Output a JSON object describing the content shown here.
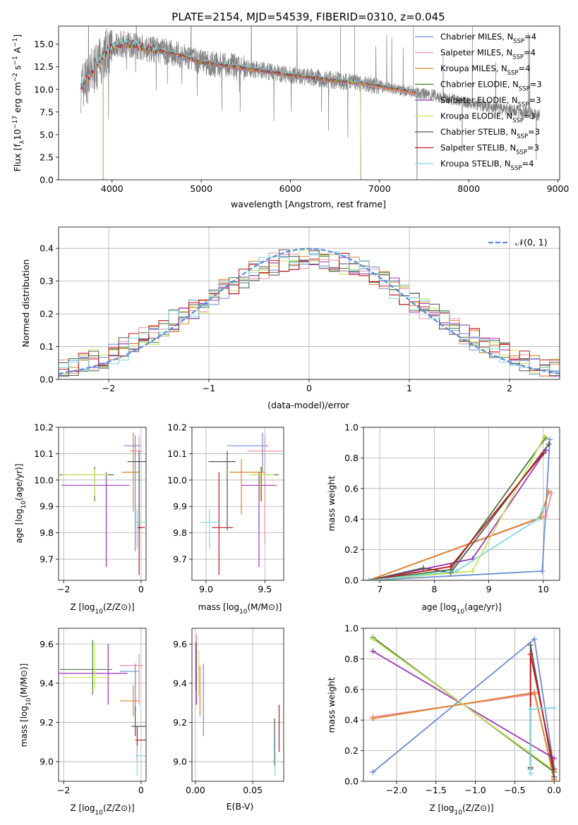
{
  "colors": {
    "chabrier_miles": "#6b8dd6",
    "salpeter_miles": "#f08ca0",
    "kroupa_miles": "#d9822b",
    "chabrier_elodie": "#4a7a3a",
    "salpeter_elodie": "#9b35b5",
    "kroupa_elodie": "#c8e65a",
    "chabrier_stelib": "#555555",
    "salpeter_stelib": "#c0161b",
    "kroupa_stelib": "#7dd8dd",
    "data": "#808080",
    "normal_curve": "#5b8bd8"
  },
  "chart_data": [
    {
      "id": "spectrum",
      "type": "line",
      "title": "PLATE=2154, MJD=54539, FIBERID=0310, z=0.045",
      "xlabel": "wavelength [Angstrom, rest frame]",
      "ylabel_parts": [
        "Flux [f",
        "λ",
        "10",
        "−17",
        " erg cm",
        "−2",
        " s",
        "−1",
        " A",
        "−1",
        "]"
      ],
      "xlim": [
        3400,
        9020
      ],
      "ylim": [
        0,
        17
      ],
      "xticks": [
        4000,
        5000,
        6000,
        7000,
        8000,
        9000
      ],
      "yticks": [
        0.0,
        2.5,
        5.0,
        7.5,
        10.0,
        12.5,
        15.0
      ],
      "legend_position": "right",
      "legend": [
        {
          "key": "chabrier_miles",
          "base": "Chabrier MILES, N",
          "sub": "SSP",
          "value": "=4"
        },
        {
          "key": "salpeter_miles",
          "base": "Salpeter MILES, N",
          "sub": "SSP",
          "value": "=4"
        },
        {
          "key": "kroupa_miles",
          "base": "Kroupa MILES, N",
          "sub": "SSP",
          "value": "=4"
        },
        {
          "key": "chabrier_elodie",
          "base": "Chabrier ELODIE, N",
          "sub": "SSP",
          "value": "=3"
        },
        {
          "key": "salpeter_elodie",
          "base": "Salpeter ELODIE, N",
          "sub": "SSP",
          "value": "=3"
        },
        {
          "key": "kroupa_elodie",
          "base": "Kroupa ELODIE, N",
          "sub": "SSP",
          "value": "=3"
        },
        {
          "key": "chabrier_stelib",
          "base": "Chabrier STELIB, N",
          "sub": "SSP",
          "value": "=3"
        },
        {
          "key": "salpeter_stelib",
          "base": "Salpeter STELIB, N",
          "sub": "SSP",
          "value": "=3"
        },
        {
          "key": "kroupa_stelib",
          "base": "Kroupa STELIB, N",
          "sub": "SSP",
          "value": "=4"
        }
      ],
      "continuum": [
        [
          3650,
          10.2
        ],
        [
          3750,
          11.5
        ],
        [
          3850,
          13.0
        ],
        [
          3950,
          14.2
        ],
        [
          4050,
          15.0
        ],
        [
          4200,
          15.0
        ],
        [
          4400,
          14.5
        ],
        [
          4700,
          14.0
        ],
        [
          5000,
          13.0
        ],
        [
          5300,
          12.6
        ],
        [
          5600,
          12.2
        ],
        [
          6000,
          11.6
        ],
        [
          6400,
          11.1
        ],
        [
          6800,
          10.7
        ],
        [
          7200,
          10.0
        ],
        [
          7600,
          9.3
        ],
        [
          8000,
          8.5
        ],
        [
          8400,
          7.8
        ],
        [
          8800,
          7.2
        ]
      ],
      "model_ranges": {
        "miles_max": 7420,
        "elodie_range": [
          3900,
          6790
        ],
        "stelib_max": 7420
      }
    },
    {
      "id": "residual_histogram",
      "type": "histogram",
      "xlabel": "(data-model)/error",
      "ylabel": "Normed distribution",
      "xlim": [
        -2.5,
        2.5
      ],
      "ylim": [
        0,
        0.465
      ],
      "xticks": [
        -2,
        -1,
        0,
        1,
        2
      ],
      "yticks": [
        0.0,
        0.1,
        0.2,
        0.3,
        0.4
      ],
      "legend": "𝒩(0, 1)",
      "legend_position": "top-right",
      "bin_width": 0.1,
      "normal": {
        "mean": 0,
        "sigma": 1,
        "style": "dashed"
      }
    },
    {
      "id": "age_vs_Z",
      "type": "errorbar",
      "xlabel": "Z [log10(Z/Z⊙)]",
      "ylabel": "age  [log10(age/yr)]",
      "xlim": [
        -2.13,
        0.13
      ],
      "ylim": [
        9.62,
        10.2
      ],
      "xticks": [
        -2,
        0
      ],
      "yticks": [
        9.7,
        9.8,
        9.9,
        10.0,
        10.1,
        10.2
      ],
      "points": [
        {
          "key": "chabrier_miles",
          "x": -0.15,
          "xerr": [
            0.3,
            0.15
          ],
          "y": 10.13,
          "yerr": [
            0.4,
            0.04
          ]
        },
        {
          "key": "salpeter_miles",
          "x": -0.05,
          "xerr": [
            0.25,
            0.1
          ],
          "y": 10.11,
          "yerr": [
            0.3,
            0.06
          ]
        },
        {
          "key": "kroupa_miles",
          "x": -0.2,
          "xerr": [
            0.3,
            0.15
          ],
          "y": 10.03,
          "yerr": [
            0.15,
            0.15
          ]
        },
        {
          "key": "chabrier_elodie",
          "x": -1.2,
          "xerr": [
            0.9,
            0.5
          ],
          "y": 10.02,
          "yerr": [
            0.1,
            0.03
          ]
        },
        {
          "key": "salpeter_elodie",
          "x": -0.9,
          "xerr": [
            1.15,
            0.6
          ],
          "y": 9.98,
          "yerr": [
            0.31,
            0.05
          ]
        },
        {
          "key": "kroupa_elodie",
          "x": -1.2,
          "xerr": [
            0.85,
            0.35
          ],
          "y": 10.02,
          "yerr": [
            0.08,
            0.02
          ]
        },
        {
          "key": "chabrier_stelib",
          "x": -0.05,
          "xerr": [
            0.3,
            0.2
          ],
          "y": 10.07,
          "yerr": [
            0.26,
            0.04
          ]
        },
        {
          "key": "salpeter_stelib",
          "x": -0.05,
          "xerr": [
            0.05,
            0.15
          ],
          "y": 9.82,
          "yerr": [
            0.18,
            0.03
          ]
        },
        {
          "key": "kroupa_stelib",
          "x": -0.1,
          "xerr": [
            0.05,
            0.2
          ],
          "y": 9.84,
          "yerr": [
            0.1,
            0.05
          ]
        }
      ]
    },
    {
      "id": "age_vs_mass",
      "type": "errorbar",
      "xlabel": "mass [log10(M/M⊙)]",
      "ylabel": "",
      "xlim": [
        8.88,
        9.66
      ],
      "ylim": [
        9.62,
        10.2
      ],
      "xticks": [
        9.0,
        9.5
      ],
      "yticks": [
        9.7,
        9.8,
        9.9,
        10.0,
        10.1,
        10.2
      ],
      "points": [
        {
          "key": "chabrier_miles",
          "x": 9.48,
          "xerr": [
            0.3,
            0.05
          ],
          "y": 10.13,
          "yerr": [
            0.1,
            0.05
          ]
        },
        {
          "key": "salpeter_miles",
          "x": 9.5,
          "xerr": [
            0.15,
            0.15
          ],
          "y": 10.11,
          "yerr": [
            0.35,
            0.06
          ]
        },
        {
          "key": "kroupa_miles",
          "x": 9.3,
          "xerr": [
            0.1,
            0.2
          ],
          "y": 10.03,
          "yerr": [
            0.16,
            0.05
          ]
        },
        {
          "key": "chabrier_elodie",
          "x": 9.47,
          "xerr": [
            0.07,
            0.15
          ],
          "y": 10.02,
          "yerr": [
            0.1,
            0.03
          ]
        },
        {
          "key": "salpeter_elodie",
          "x": 9.45,
          "xerr": [
            0.15,
            0.15
          ],
          "y": 9.98,
          "yerr": [
            0.31,
            0.05
          ]
        },
        {
          "key": "kroupa_elodie",
          "x": 9.46,
          "xerr": [
            0.1,
            0.12
          ],
          "y": 10.02,
          "yerr": [
            0.1,
            0.03
          ]
        },
        {
          "key": "chabrier_stelib",
          "x": 9.18,
          "xerr": [
            0.16,
            0.07
          ],
          "y": 10.07,
          "yerr": [
            0.26,
            0.04
          ]
        },
        {
          "key": "salpeter_stelib",
          "x": 9.11,
          "xerr": [
            0.06,
            0.12
          ],
          "y": 9.82,
          "yerr": [
            0.18,
            0.21
          ]
        },
        {
          "key": "kroupa_stelib",
          "x": 9.03,
          "xerr": [
            0.08,
            0.09
          ],
          "y": 9.84,
          "yerr": [
            0.1,
            0.05
          ]
        }
      ]
    },
    {
      "id": "weight_vs_age",
      "type": "line",
      "xlabel": "age  [log10(age/yr)]",
      "ylabel": "mass weight",
      "xlim": [
        6.7,
        10.3
      ],
      "ylim": [
        0,
        1
      ],
      "xticks": [
        7,
        8,
        9,
        10
      ],
      "yticks": [
        0.0,
        0.2,
        0.4,
        0.6,
        0.8,
        1.0
      ],
      "series": [
        {
          "key": "chabrier_miles",
          "x": [
            6.8,
            9.98,
            10.12
          ],
          "y": [
            0.0,
            0.06,
            0.92
          ]
        },
        {
          "key": "salpeter_miles",
          "x": [
            6.8,
            10.05,
            10.15
          ],
          "y": [
            0.0,
            0.42,
            0.57
          ]
        },
        {
          "key": "kroupa_miles",
          "x": [
            6.8,
            9.95,
            10.1
          ],
          "y": [
            0.0,
            0.41,
            0.58
          ]
        },
        {
          "key": "chabrier_elodie",
          "x": [
            6.8,
            8.3,
            10.04
          ],
          "y": [
            0.0,
            0.07,
            0.93
          ]
        },
        {
          "key": "salpeter_elodie",
          "x": [
            6.8,
            8.7,
            10.05
          ],
          "y": [
            0.0,
            0.14,
            0.85
          ]
        },
        {
          "key": "kroupa_elodie",
          "x": [
            6.8,
            8.7,
            10.02
          ],
          "y": [
            0.0,
            0.06,
            0.94
          ]
        },
        {
          "key": "chabrier_stelib",
          "x": [
            6.8,
            7.8,
            8.3,
            10.1
          ],
          "y": [
            0.0,
            0.08,
            0.05,
            0.89
          ]
        },
        {
          "key": "salpeter_stelib",
          "x": [
            6.8,
            8.3,
            10.0
          ],
          "y": [
            0.0,
            0.09,
            0.83
          ]
        },
        {
          "key": "kroupa_stelib",
          "x": [
            6.8,
            8.4,
            9.9,
            10.0
          ],
          "y": [
            0.0,
            0.06,
            0.4,
            0.47
          ]
        }
      ]
    },
    {
      "id": "mass_vs_Z",
      "type": "errorbar",
      "xlabel": "Z [log10(Z/Z⊙)]",
      "ylabel": "mass [log10(M/M⊙)]",
      "xlim": [
        -2.13,
        0.13
      ],
      "ylim": [
        8.9,
        9.68
      ],
      "xticks": [
        -2,
        0
      ],
      "yticks": [
        9.0,
        9.2,
        9.4,
        9.6
      ],
      "points": [
        {
          "key": "chabrier_miles",
          "x": -0.15,
          "xerr": [
            0.4,
            0.1
          ],
          "y": 9.46,
          "yerr": [
            0.2,
            0.04
          ]
        },
        {
          "key": "salpeter_miles",
          "x": -0.05,
          "xerr": [
            0.5,
            0.1
          ],
          "y": 9.49,
          "yerr": [
            0.2,
            0.06
          ]
        },
        {
          "key": "kroupa_miles",
          "x": -0.2,
          "xerr": [
            0.35,
            0.15
          ],
          "y": 9.31,
          "yerr": [
            0.08,
            0.08
          ]
        },
        {
          "key": "chabrier_elodie",
          "x": -1.25,
          "xerr": [
            0.85,
            0.5
          ],
          "y": 9.47,
          "yerr": [
            0.13,
            0.15
          ]
        },
        {
          "key": "salpeter_elodie",
          "x": -0.85,
          "xerr": [
            1.3,
            0.5
          ],
          "y": 9.45,
          "yerr": [
            0.16,
            0.15
          ]
        },
        {
          "key": "kroupa_elodie",
          "x": -1.2,
          "xerr": [
            0.8,
            0.35
          ],
          "y": 9.43,
          "yerr": [
            0.06,
            0.18
          ]
        },
        {
          "key": "chabrier_stelib",
          "x": -0.15,
          "xerr": [
            0.1,
            0.35
          ],
          "y": 9.18,
          "yerr": [
            0.05,
            0.1
          ]
        },
        {
          "key": "salpeter_stelib",
          "x": -0.1,
          "xerr": [
            0.05,
            0.3
          ],
          "y": 9.11,
          "yerr": [
            0.1,
            0.07
          ]
        },
        {
          "key": "kroupa_stelib",
          "x": -0.1,
          "xerr": [
            0.05,
            0.3
          ],
          "y": 9.03,
          "yerr": [
            0.1,
            0.05
          ]
        }
      ]
    },
    {
      "id": "mass_vs_ebv",
      "type": "errorbar",
      "xlabel": "E(B-V)",
      "ylabel": "",
      "xlim": [
        -0.003,
        0.077
      ],
      "ylim": [
        8.9,
        9.68
      ],
      "xticks": [
        0.0,
        0.05
      ],
      "yticks": [
        9.0,
        9.2,
        9.4,
        9.6
      ],
      "points": [
        {
          "key": "chabrier_miles",
          "x": 0.007,
          "y": 9.33,
          "yerr": [
            0.2,
            0.17
          ]
        },
        {
          "key": "salpeter_miles",
          "x": 0.001,
          "y": 9.47,
          "yerr": [
            0.18,
            0.18
          ]
        },
        {
          "key": "kroupa_miles",
          "x": 0.004,
          "y": 9.36,
          "yerr": [
            0.13,
            0.13
          ]
        },
        {
          "key": "chabrier_elodie",
          "x": 0.0005,
          "y": 9.49,
          "yerr": [
            0.13,
            0.12
          ]
        },
        {
          "key": "salpeter_elodie",
          "x": 0.0008,
          "y": 9.45,
          "yerr": [
            0.16,
            0.15
          ]
        },
        {
          "key": "kroupa_elodie",
          "x": 0.003,
          "y": 9.45,
          "yerr": [
            0.12,
            0.12
          ]
        },
        {
          "key": "chabrier_stelib",
          "x": 0.069,
          "y": 9.1,
          "yerr": [
            0.12,
            0.12
          ]
        },
        {
          "key": "salpeter_stelib",
          "x": 0.073,
          "y": 9.17,
          "yerr": [
            0.12,
            0.12
          ]
        },
        {
          "key": "kroupa_stelib",
          "x": 0.0695,
          "y": 9.03,
          "yerr": [
            0.1,
            0.12
          ]
        }
      ]
    },
    {
      "id": "weight_vs_Z",
      "type": "line",
      "xlabel": "Z [log10(Z/Z⊙)]",
      "ylabel": "mass weight",
      "xlim": [
        -2.42,
        0.07
      ],
      "ylim": [
        0,
        1
      ],
      "xticks": [
        -2.0,
        -1.5,
        -1.0,
        -0.5,
        0.0
      ],
      "yticks": [
        0.0,
        0.2,
        0.4,
        0.6,
        0.8,
        1.0
      ],
      "series": [
        {
          "key": "chabrier_miles",
          "x": [
            -2.3,
            -0.25,
            0.0
          ],
          "y": [
            0.06,
            0.93,
            0.08
          ]
        },
        {
          "key": "salpeter_miles",
          "x": [
            -2.3,
            -0.25,
            0.0
          ],
          "y": [
            0.42,
            0.57,
            0.02
          ]
        },
        {
          "key": "kroupa_miles",
          "x": [
            -2.3,
            -0.25,
            0.0
          ],
          "y": [
            0.41,
            0.58,
            0.01
          ]
        },
        {
          "key": "chabrier_elodie",
          "x": [
            -2.3,
            0.0
          ],
          "y": [
            0.94,
            0.06
          ]
        },
        {
          "key": "salpeter_elodie",
          "x": [
            -2.3,
            0.0
          ],
          "y": [
            0.85,
            0.15
          ]
        },
        {
          "key": "kroupa_elodie",
          "x": [
            -2.3,
            0.0
          ],
          "y": [
            0.93,
            0.07
          ]
        },
        {
          "key": "chabrier_stelib",
          "x": [
            -0.3,
            -0.3,
            0.0
          ],
          "y": [
            0.08,
            0.89,
            0.03
          ]
        },
        {
          "key": "salpeter_stelib",
          "x": [
            -0.3,
            -0.3,
            0.0
          ],
          "y": [
            0.09,
            0.83,
            0.08
          ]
        },
        {
          "key": "kroupa_stelib",
          "x": [
            -0.3,
            -0.3,
            0.0
          ],
          "y": [
            0.05,
            0.47,
            0.48
          ]
        }
      ]
    }
  ]
}
